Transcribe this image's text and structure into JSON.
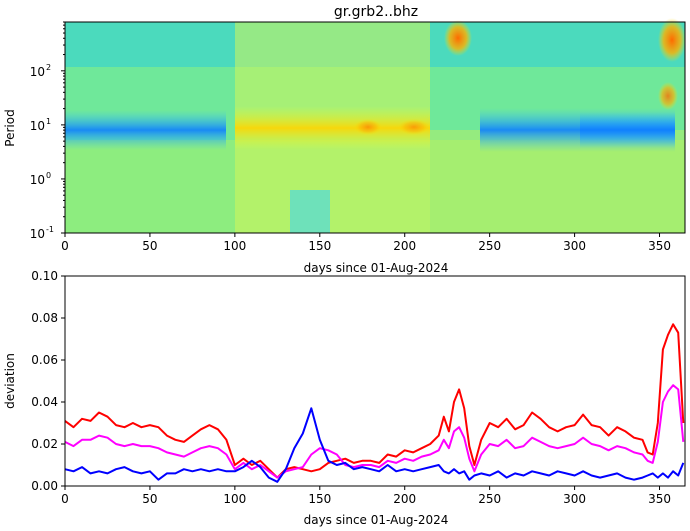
{
  "chart_data": [
    {
      "type": "heatmap",
      "title": "gr.grb2..bhz",
      "xlabel": "days since 01-Aug-2024",
      "ylabel": "Period",
      "xlim": [
        0,
        365
      ],
      "ylim": [
        0.1,
        800
      ],
      "y_scale": "log",
      "colormap": "jet",
      "x_ticks": [
        "0",
        "50",
        "100",
        "150",
        "200",
        "250",
        "300",
        "350"
      ],
      "y_ticks": [
        "10",
        "10",
        "10",
        "10"
      ],
      "y_tick_exponents": [
        "-1",
        "0",
        "1",
        "2"
      ],
      "features": [
        {
          "feature": "low band (blue) at period ~6-10 s",
          "x_range": [
            0,
            95
          ],
          "level": "low"
        },
        {
          "feature": "low band (blue) at period ~6-10 s",
          "x_range": [
            245,
            360
          ],
          "level": "low"
        },
        {
          "feature": "elevated (yellow) at period ~10 s",
          "x_range": [
            140,
            215
          ],
          "level": "high"
        },
        {
          "feature": "peak (orange) at long periods",
          "x_range": [
            222,
            235
          ],
          "level": "very high"
        },
        {
          "feature": "peak (orange/red) at long periods",
          "x_range": [
            352,
            365
          ],
          "level": "very high"
        }
      ]
    },
    {
      "type": "line",
      "title": "",
      "xlabel": "days since 01-Aug-2024",
      "ylabel": "deviation",
      "xlim": [
        0,
        365
      ],
      "ylim": [
        0,
        0.1
      ],
      "x_ticks": [
        "0",
        "50",
        "100",
        "150",
        "200",
        "250",
        "300",
        "350"
      ],
      "y_ticks": [
        "0.00",
        "0.02",
        "0.04",
        "0.06",
        "0.08",
        "0.10"
      ],
      "grid": false,
      "series": [
        {
          "color": "#ff0000",
          "x": [
            0,
            5,
            10,
            15,
            20,
            25,
            30,
            35,
            40,
            45,
            50,
            55,
            60,
            65,
            70,
            75,
            80,
            85,
            90,
            95,
            100,
            105,
            110,
            115,
            120,
            125,
            130,
            135,
            140,
            145,
            150,
            155,
            160,
            165,
            170,
            175,
            180,
            185,
            190,
            195,
            200,
            205,
            210,
            215,
            220,
            223,
            226,
            229,
            232,
            235,
            238,
            241,
            245,
            250,
            255,
            260,
            265,
            270,
            275,
            280,
            285,
            290,
            295,
            300,
            305,
            310,
            315,
            320,
            325,
            330,
            335,
            340,
            343,
            346,
            349,
            352,
            355,
            358,
            361,
            364
          ],
          "values": [
            0.031,
            0.028,
            0.032,
            0.031,
            0.035,
            0.033,
            0.029,
            0.028,
            0.03,
            0.028,
            0.029,
            0.028,
            0.024,
            0.022,
            0.021,
            0.024,
            0.027,
            0.029,
            0.027,
            0.022,
            0.01,
            0.013,
            0.01,
            0.012,
            0.008,
            0.004,
            0.008,
            0.009,
            0.008,
            0.007,
            0.008,
            0.011,
            0.012,
            0.013,
            0.011,
            0.012,
            0.012,
            0.011,
            0.015,
            0.014,
            0.017,
            0.016,
            0.018,
            0.02,
            0.024,
            0.033,
            0.026,
            0.04,
            0.046,
            0.037,
            0.019,
            0.01,
            0.022,
            0.03,
            0.028,
            0.032,
            0.027,
            0.029,
            0.035,
            0.032,
            0.028,
            0.026,
            0.028,
            0.029,
            0.034,
            0.029,
            0.028,
            0.024,
            0.028,
            0.026,
            0.023,
            0.022,
            0.016,
            0.015,
            0.03,
            0.065,
            0.072,
            0.077,
            0.073,
            0.03
          ]
        },
        {
          "color": "#ff00ff",
          "x": [
            0,
            5,
            10,
            15,
            20,
            25,
            30,
            35,
            40,
            45,
            50,
            55,
            60,
            65,
            70,
            75,
            80,
            85,
            90,
            95,
            100,
            105,
            110,
            115,
            120,
            125,
            130,
            135,
            140,
            145,
            150,
            155,
            160,
            165,
            170,
            175,
            180,
            185,
            190,
            195,
            200,
            205,
            210,
            215,
            220,
            223,
            226,
            229,
            232,
            235,
            238,
            241,
            245,
            250,
            255,
            260,
            265,
            270,
            275,
            280,
            285,
            290,
            295,
            300,
            305,
            310,
            315,
            320,
            325,
            330,
            335,
            340,
            343,
            346,
            349,
            352,
            355,
            358,
            361,
            364
          ],
          "values": [
            0.021,
            0.019,
            0.022,
            0.022,
            0.024,
            0.023,
            0.02,
            0.019,
            0.02,
            0.019,
            0.019,
            0.018,
            0.016,
            0.015,
            0.014,
            0.016,
            0.018,
            0.019,
            0.018,
            0.015,
            0.008,
            0.011,
            0.008,
            0.01,
            0.007,
            0.004,
            0.007,
            0.008,
            0.009,
            0.015,
            0.018,
            0.017,
            0.015,
            0.01,
            0.009,
            0.01,
            0.01,
            0.009,
            0.012,
            0.011,
            0.013,
            0.012,
            0.014,
            0.015,
            0.017,
            0.022,
            0.018,
            0.026,
            0.028,
            0.023,
            0.013,
            0.007,
            0.015,
            0.02,
            0.019,
            0.022,
            0.018,
            0.019,
            0.023,
            0.021,
            0.019,
            0.018,
            0.019,
            0.02,
            0.023,
            0.02,
            0.019,
            0.017,
            0.019,
            0.018,
            0.016,
            0.015,
            0.012,
            0.011,
            0.021,
            0.04,
            0.045,
            0.048,
            0.046,
            0.021
          ]
        },
        {
          "color": "#0000ff",
          "x": [
            0,
            5,
            10,
            15,
            20,
            25,
            30,
            35,
            40,
            45,
            50,
            55,
            60,
            65,
            70,
            75,
            80,
            85,
            90,
            95,
            100,
            105,
            110,
            115,
            120,
            125,
            130,
            135,
            140,
            145,
            150,
            155,
            160,
            165,
            170,
            175,
            180,
            185,
            190,
            195,
            200,
            205,
            210,
            215,
            220,
            223,
            226,
            229,
            232,
            235,
            238,
            241,
            245,
            250,
            255,
            260,
            265,
            270,
            275,
            280,
            285,
            290,
            295,
            300,
            305,
            310,
            315,
            320,
            325,
            330,
            335,
            340,
            343,
            346,
            349,
            352,
            355,
            358,
            361,
            364
          ],
          "values": [
            0.008,
            0.007,
            0.009,
            0.006,
            0.007,
            0.006,
            0.008,
            0.009,
            0.007,
            0.006,
            0.007,
            0.003,
            0.006,
            0.006,
            0.008,
            0.007,
            0.008,
            0.007,
            0.008,
            0.007,
            0.007,
            0.009,
            0.012,
            0.009,
            0.004,
            0.002,
            0.008,
            0.018,
            0.025,
            0.037,
            0.022,
            0.012,
            0.01,
            0.011,
            0.008,
            0.009,
            0.008,
            0.007,
            0.01,
            0.007,
            0.008,
            0.007,
            0.008,
            0.009,
            0.01,
            0.007,
            0.006,
            0.008,
            0.006,
            0.007,
            0.003,
            0.005,
            0.006,
            0.005,
            0.007,
            0.004,
            0.006,
            0.005,
            0.007,
            0.006,
            0.005,
            0.007,
            0.006,
            0.005,
            0.007,
            0.005,
            0.004,
            0.005,
            0.006,
            0.004,
            0.003,
            0.004,
            0.005,
            0.006,
            0.004,
            0.006,
            0.004,
            0.007,
            0.005,
            0.011
          ]
        }
      ]
    }
  ]
}
